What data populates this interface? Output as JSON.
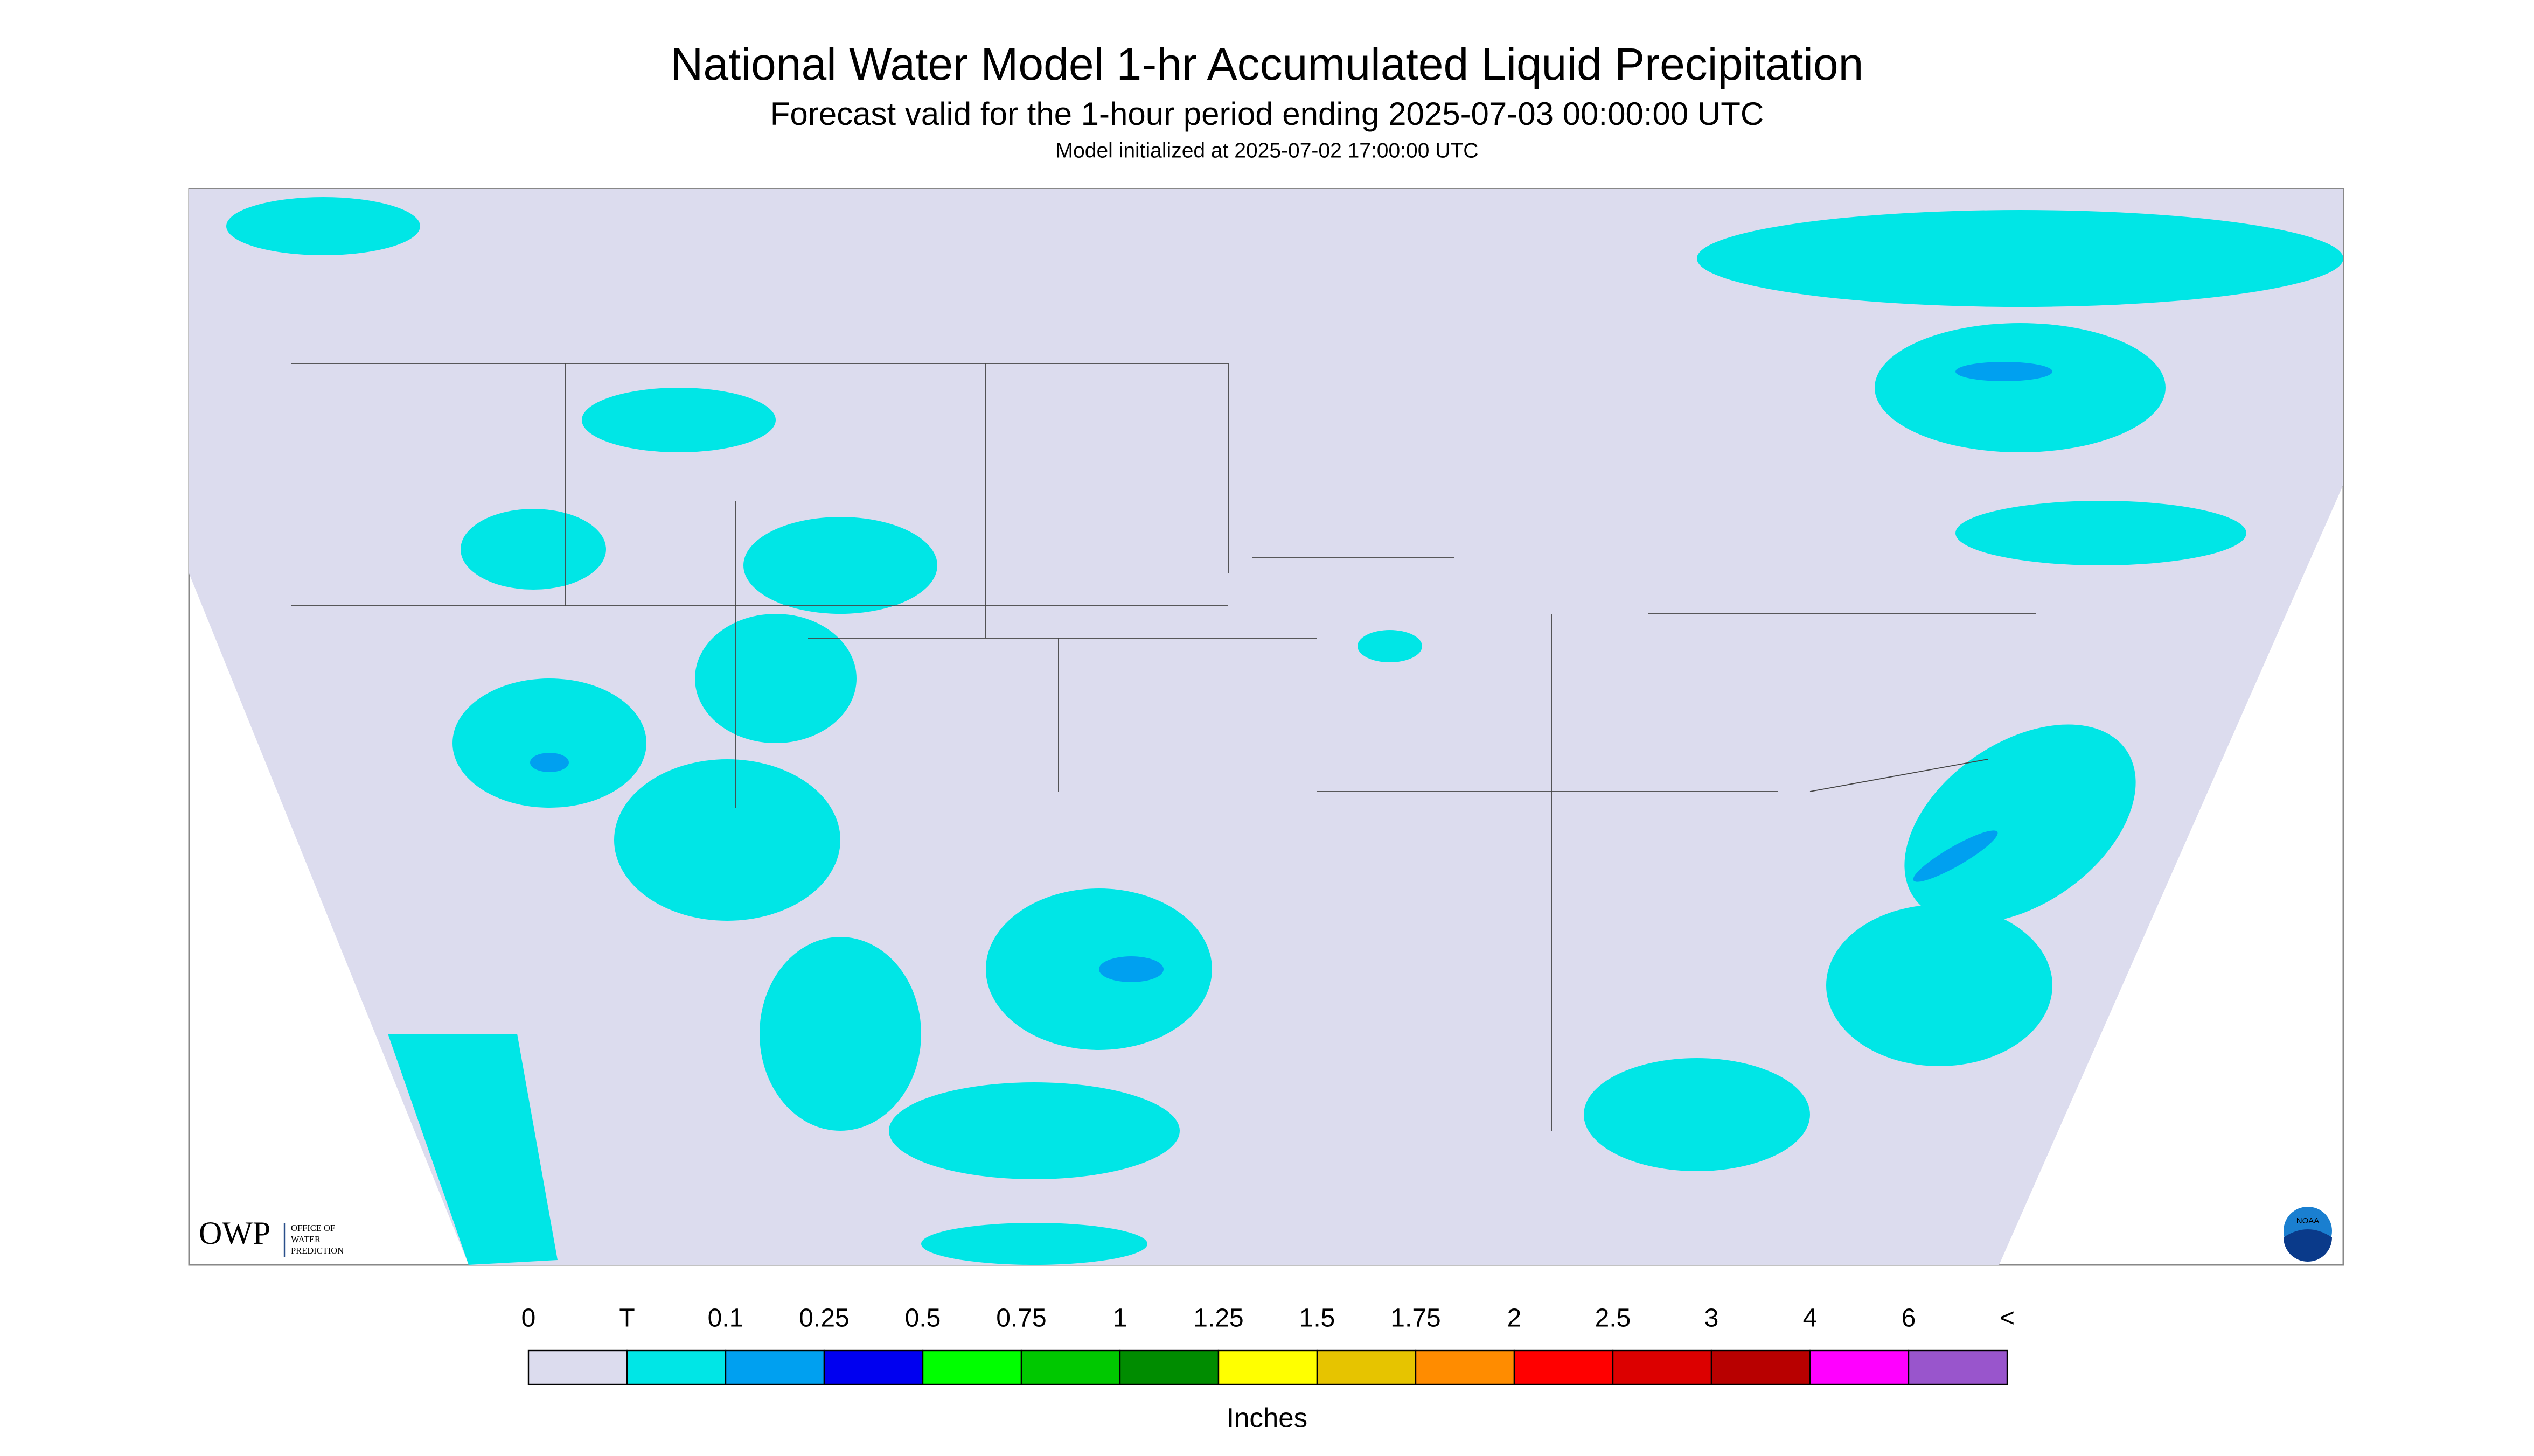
{
  "header": {
    "title": "National Water Model 1-hr Accumulated Liquid Precipitation",
    "subtitle": "Forecast valid for the 1-hour period ending 2025-07-03 00:00:00 UTC",
    "init": "Model initialized at 2025-07-02 17:00:00 UTC"
  },
  "logo": {
    "name": "OWP",
    "lines": [
      "OFFICE OF",
      "WATER",
      "PREDICTION"
    ],
    "agency": "NOAA"
  },
  "legend": {
    "labels": [
      "0",
      "T",
      "0.1",
      "0.25",
      "0.5",
      "0.75",
      "1",
      "1.25",
      "1.5",
      "1.75",
      "2",
      "2.5",
      "3",
      "4",
      "6",
      "<"
    ],
    "colors": [
      "#dcdcee",
      "#00e6e6",
      "#00a0f0",
      "#0000f0",
      "#00ff00",
      "#00c800",
      "#008c00",
      "#ffff00",
      "#e6c400",
      "#ff8c00",
      "#ff0000",
      "#dc0000",
      "#b80000",
      "#ff00ff",
      "#9955cc"
    ],
    "units": "Inches"
  }
}
